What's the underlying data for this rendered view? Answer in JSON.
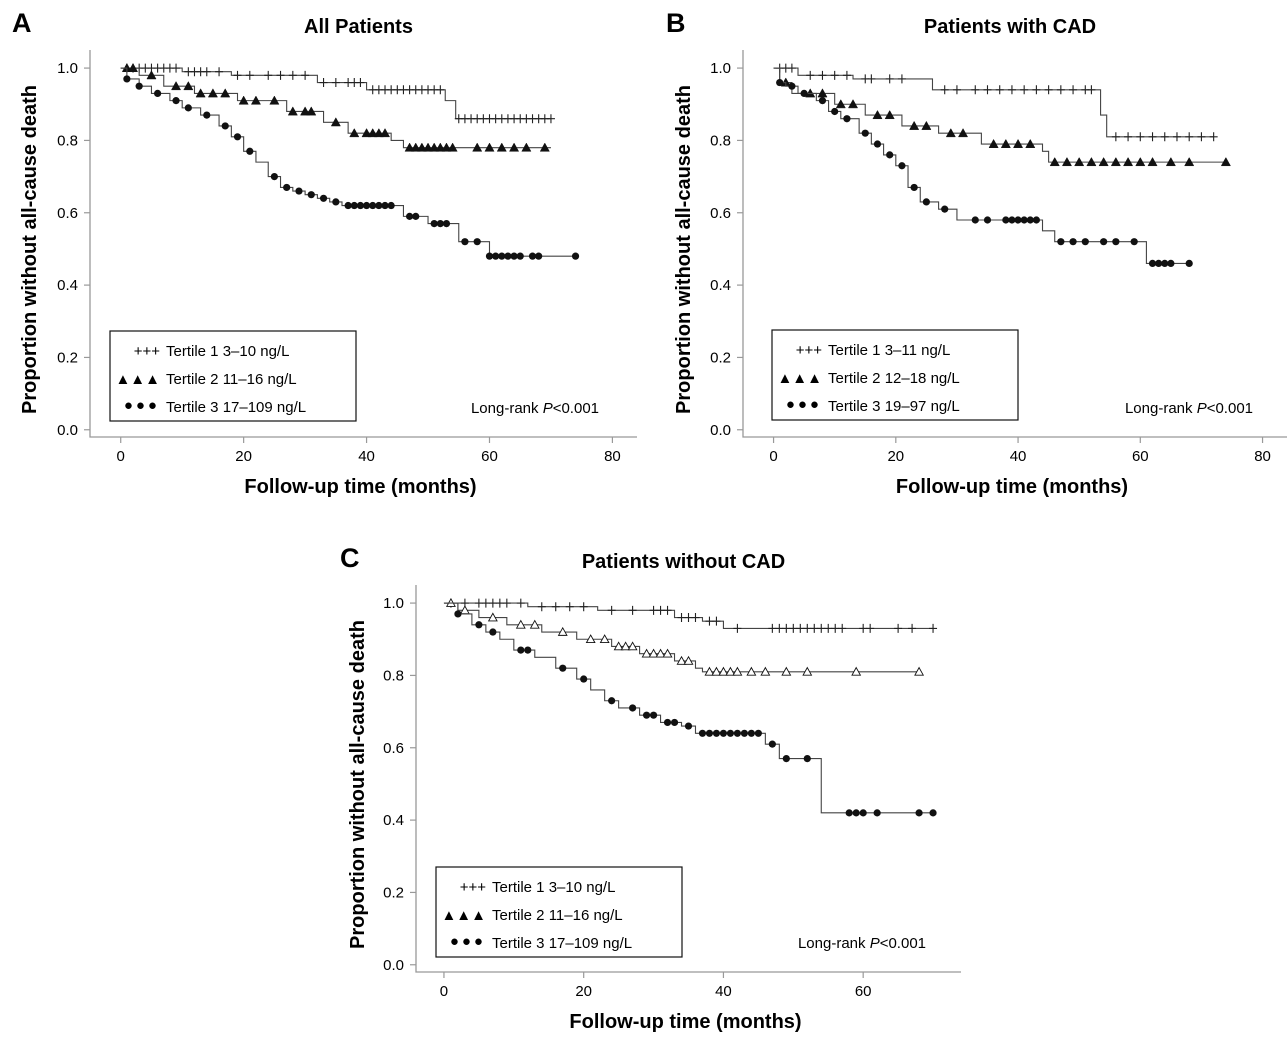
{
  "chart_data": [
    {
      "type": "line",
      "panel_letter": "A",
      "title": "All Patients",
      "xlabel": "Follow-up time (months)",
      "ylabel": "Proportion without all-cause death",
      "xlim": [
        -5,
        84
      ],
      "ylim": [
        -0.02,
        1.05
      ],
      "xticks": [
        "0",
        "20",
        "40",
        "60",
        "80"
      ],
      "yticks": [
        "0.0",
        "0.2",
        "0.4",
        "0.6",
        "0.8",
        "1.0"
      ],
      "legend_position": "bottom-left",
      "annotation": {
        "prefix": "Long-rank ",
        "italic": "P",
        "suffix": "<0.001"
      },
      "series": [
        {
          "name": "Tertile 1 3–10 ng/L",
          "legend_marker": "+++",
          "marker": "plus",
          "x": [
            0,
            10,
            18,
            32,
            40,
            52.8,
            54.5,
            70
          ],
          "y": [
            1.0,
            0.99,
            0.98,
            0.96,
            0.94,
            0.91,
            0.86,
            0.86
          ],
          "censor_x": [
            1,
            2,
            3,
            4,
            5,
            6,
            7,
            8,
            9,
            11,
            12,
            13,
            14,
            16,
            19,
            21,
            24,
            26,
            28,
            30,
            33,
            35,
            37,
            38,
            39,
            41,
            42,
            43,
            44,
            45,
            46,
            47,
            48,
            49,
            50,
            51,
            52,
            55,
            56,
            57,
            58,
            59,
            60,
            61,
            62,
            63,
            64,
            65,
            66,
            67,
            68,
            69,
            70
          ]
        },
        {
          "name": "Tertile 2 11–16 ng/L",
          "legend_marker": "▲▲▲",
          "marker": "filled-triangle",
          "x": [
            0,
            3,
            7,
            12,
            19,
            27,
            33,
            37,
            44,
            46,
            70
          ],
          "y": [
            1.0,
            0.98,
            0.95,
            0.93,
            0.91,
            0.88,
            0.85,
            0.82,
            0.8,
            0.78,
            0.78
          ],
          "censor_x": [
            1,
            2,
            5,
            9,
            11,
            13,
            15,
            17,
            20,
            22,
            25,
            28,
            30,
            31,
            35,
            38,
            40,
            41,
            42,
            43,
            47,
            48,
            49,
            50,
            51,
            52,
            53,
            54,
            58,
            60,
            62,
            64,
            66,
            69
          ]
        },
        {
          "name": "Tertile 3 17–109 ng/L",
          "legend_marker": "●●●",
          "marker": "filled-circle",
          "x": [
            0,
            1,
            3,
            5,
            8,
            10,
            13,
            16,
            18,
            20,
            22,
            24,
            26,
            28,
            30,
            32,
            34,
            36,
            46,
            50,
            55,
            60,
            74
          ],
          "y": [
            1.0,
            0.97,
            0.95,
            0.93,
            0.91,
            0.89,
            0.87,
            0.84,
            0.81,
            0.77,
            0.74,
            0.7,
            0.67,
            0.66,
            0.65,
            0.64,
            0.63,
            0.62,
            0.59,
            0.57,
            0.52,
            0.48,
            0.48
          ],
          "censor_x": [
            1,
            3,
            6,
            9,
            11,
            14,
            17,
            19,
            21,
            25,
            27,
            29,
            31,
            33,
            35,
            37,
            38,
            39,
            40,
            41,
            42,
            43,
            44,
            47,
            48,
            51,
            52,
            53,
            56,
            58,
            60,
            61,
            62,
            63,
            64,
            65,
            67,
            68,
            74
          ]
        }
      ]
    },
    {
      "type": "line",
      "panel_letter": "B",
      "title": "Patients with CAD",
      "xlabel": "Follow-up time (months)",
      "ylabel": "Proportion without all-cause death",
      "xlim": [
        -5,
        84
      ],
      "ylim": [
        -0.02,
        1.05
      ],
      "xticks": [
        "0",
        "20",
        "40",
        "60",
        "80"
      ],
      "yticks": [
        "0.0",
        "0.2",
        "0.4",
        "0.6",
        "0.8",
        "1.0"
      ],
      "legend_position": "bottom-left",
      "annotation": {
        "prefix": "Long-rank ",
        "italic": "P",
        "suffix": "<0.001"
      },
      "series": [
        {
          "name": "Tertile 1 3–11 ng/L",
          "legend_marker": "+++",
          "marker": "plus",
          "x": [
            0,
            4,
            13,
            26,
            53.5,
            54.5,
            72
          ],
          "y": [
            1.0,
            0.98,
            0.97,
            0.94,
            0.87,
            0.81,
            0.81
          ],
          "censor_x": [
            1,
            2,
            3,
            6,
            8,
            10,
            12,
            15,
            16,
            19,
            21,
            28,
            30,
            33,
            35,
            37,
            39,
            41,
            43,
            45,
            47,
            49,
            51,
            52,
            56,
            58,
            60,
            62,
            64,
            66,
            68,
            70,
            72
          ]
        },
        {
          "name": "Tertile 2 12–18 ng/L",
          "legend_marker": "▲▲▲",
          "marker": "filled-triangle",
          "x": [
            0,
            1,
            3,
            10,
            15,
            21,
            27,
            34,
            44,
            45,
            74
          ],
          "y": [
            1.0,
            0.96,
            0.93,
            0.9,
            0.87,
            0.84,
            0.82,
            0.79,
            0.77,
            0.74,
            0.74
          ],
          "censor_x": [
            2,
            6,
            8,
            11,
            13,
            17,
            19,
            23,
            25,
            29,
            31,
            36,
            38,
            40,
            42,
            46,
            48,
            50,
            52,
            54,
            56,
            58,
            60,
            62,
            65,
            68,
            74
          ]
        },
        {
          "name": "Tertile 3 19–97 ng/L",
          "legend_marker": "●●●",
          "marker": "filled-circle",
          "x": [
            0,
            1,
            2,
            4,
            7,
            9,
            11,
            14,
            16,
            18,
            20,
            22,
            24,
            27,
            30,
            44,
            46,
            61,
            68
          ],
          "y": [
            1.0,
            0.96,
            0.95,
            0.93,
            0.91,
            0.88,
            0.86,
            0.82,
            0.79,
            0.76,
            0.73,
            0.67,
            0.63,
            0.61,
            0.58,
            0.55,
            0.52,
            0.46,
            0.46
          ],
          "censor_x": [
            1,
            3,
            5,
            8,
            10,
            12,
            15,
            17,
            19,
            21,
            23,
            25,
            28,
            33,
            35,
            38,
            39,
            40,
            41,
            42,
            43,
            47,
            49,
            51,
            54,
            56,
            59,
            62,
            63,
            64,
            65,
            68
          ]
        }
      ]
    },
    {
      "type": "line",
      "panel_letter": "C",
      "title": "Patients without CAD",
      "xlabel": "Follow-up time (months)",
      "ylabel": "Proportion without all-cause death",
      "xlim": [
        -4,
        74
      ],
      "ylim": [
        -0.02,
        1.05
      ],
      "xticks": [
        "0",
        "20",
        "40",
        "60"
      ],
      "yticks": [
        "0.0",
        "0.2",
        "0.4",
        "0.6",
        "0.8",
        "1.0"
      ],
      "legend_position": "bottom-left",
      "annotation": {
        "prefix": "Long-rank ",
        "italic": "P",
        "suffix": "<0.001"
      },
      "series": [
        {
          "name": "Tertile 1 3–10 ng/L",
          "legend_marker": "+++",
          "marker": "plus",
          "x": [
            0,
            12,
            22,
            33,
            37,
            40,
            70
          ],
          "y": [
            1.0,
            0.99,
            0.98,
            0.96,
            0.95,
            0.93,
            0.93
          ],
          "censor_x": [
            1,
            3,
            5,
            6,
            7,
            8,
            9,
            11,
            14,
            16,
            18,
            20,
            24,
            27,
            30,
            31,
            32,
            34,
            35,
            36,
            38,
            39,
            42,
            47,
            48,
            49,
            50,
            51,
            52,
            53,
            54,
            55,
            56,
            57,
            60,
            61,
            65,
            67,
            70
          ]
        },
        {
          "name": "Tertile 2 11–16 ng/L",
          "legend_marker": "▲▲▲",
          "marker": "open-triangle",
          "x": [
            0,
            2,
            5,
            9,
            14,
            19,
            24,
            28,
            33,
            36,
            37,
            68
          ],
          "y": [
            1.0,
            0.98,
            0.96,
            0.94,
            0.92,
            0.9,
            0.88,
            0.86,
            0.84,
            0.82,
            0.81,
            0.81
          ],
          "censor_x": [
            1,
            3,
            7,
            11,
            13,
            17,
            21,
            23,
            25,
            26,
            27,
            29,
            30,
            31,
            32,
            34,
            35,
            38,
            39,
            40,
            41,
            42,
            44,
            46,
            49,
            52,
            59,
            68
          ]
        },
        {
          "name": "Tertile 3 17–109 ng/L",
          "legend_marker": "●●●",
          "marker": "filled-circle",
          "x": [
            0,
            2,
            4,
            6,
            8,
            10,
            13,
            16,
            19,
            21,
            23,
            25,
            28,
            31,
            34,
            36,
            46,
            48,
            54,
            70
          ],
          "y": [
            1.0,
            0.97,
            0.94,
            0.92,
            0.9,
            0.87,
            0.85,
            0.82,
            0.79,
            0.76,
            0.73,
            0.71,
            0.69,
            0.67,
            0.66,
            0.64,
            0.61,
            0.57,
            0.42,
            0.42
          ],
          "censor_x": [
            2,
            5,
            7,
            11,
            12,
            17,
            20,
            24,
            27,
            29,
            30,
            32,
            33,
            35,
            37,
            38,
            39,
            40,
            41,
            42,
            43,
            44,
            45,
            47,
            49,
            52,
            58,
            59,
            60,
            62,
            68,
            70
          ]
        }
      ]
    }
  ]
}
